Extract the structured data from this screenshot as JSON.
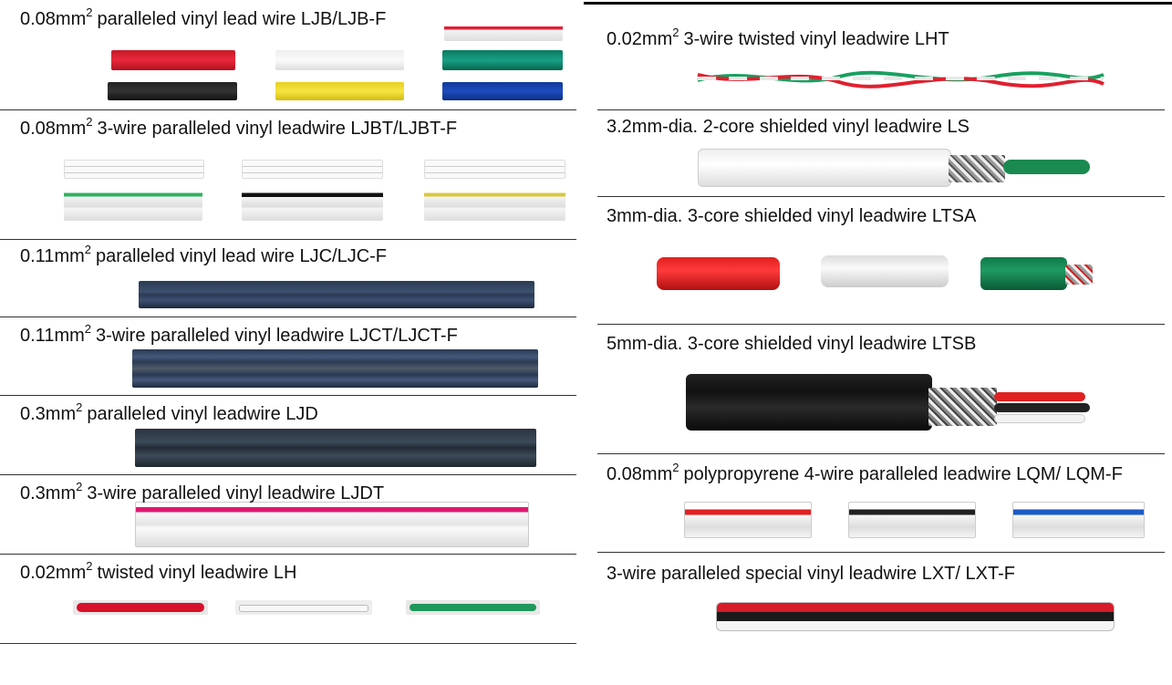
{
  "left": [
    {
      "unit": "0.08mm",
      "exp": "2",
      "name": "paralleled vinyl lead wire LJB/LJB-F"
    },
    {
      "unit": "0.08mm",
      "exp": "2",
      "name": "3-wire paralleled vinyl leadwire LJBT/LJBT-F"
    },
    {
      "unit": "0.11mm",
      "exp": "2",
      "name": "paralleled vinyl lead wire LJC/LJC-F"
    },
    {
      "unit": "0.11mm",
      "exp": "2",
      "name": "3-wire paralleled vinyl leadwire LJCT/LJCT-F"
    },
    {
      "unit": "0.3mm",
      "exp": "2",
      "name": "paralleled vinyl leadwire LJD"
    },
    {
      "unit": "0.3mm",
      "exp": "2",
      "name": "3-wire paralleled vinyl leadwire LJDT"
    },
    {
      "unit": "0.02mm",
      "exp": "2",
      "name": "twisted vinyl leadwire LH"
    }
  ],
  "right": [
    {
      "unit": "0.02mm",
      "exp": "2",
      "name": "3-wire twisted vinyl leadwire LHT"
    },
    {
      "name": "3.2mm-dia. 2-core shielded vinyl leadwire LS"
    },
    {
      "name": "3mm-dia. 3-core shielded vinyl leadwire LTSA"
    },
    {
      "name": "5mm-dia. 3-core shielded vinyl leadwire LTSB"
    },
    {
      "unit": "0.08mm",
      "exp": "2",
      "name": "polypropyrene 4-wire paralleled leadwire  LQM/ LQM-F"
    },
    {
      "name": "3-wire paralleled special vinyl leadwire LXT/ LXT-F"
    }
  ]
}
